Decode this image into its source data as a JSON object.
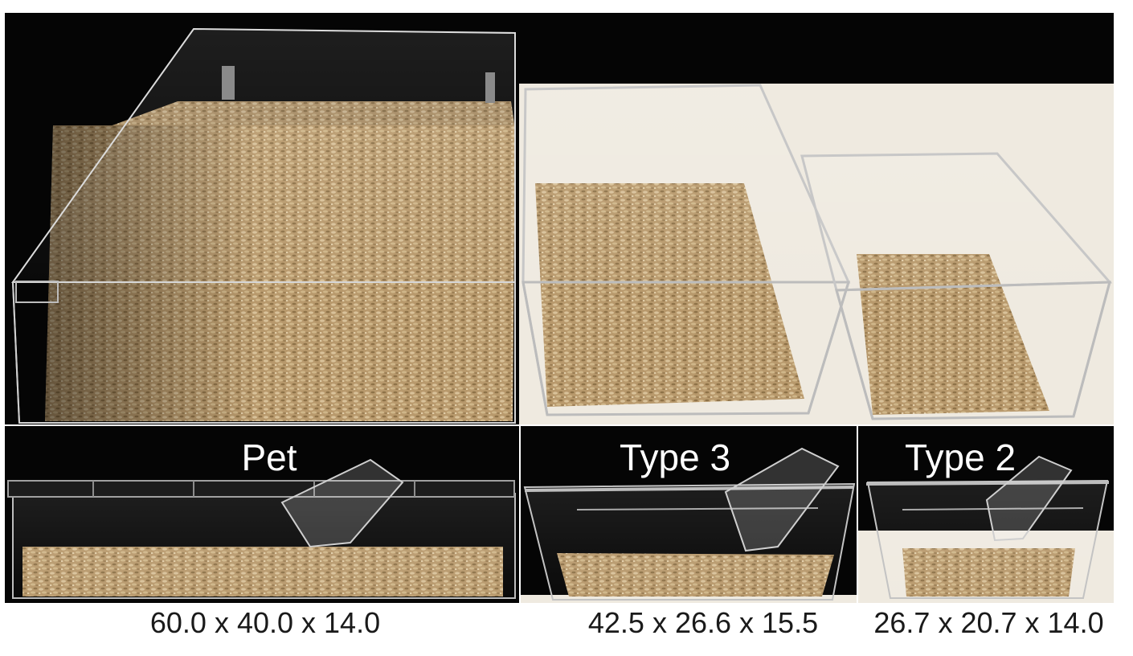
{
  "figure": {
    "photos": {
      "top_photo": "cage-photo",
      "front_photos": "cage-front-photo"
    },
    "cages": [
      {
        "label": "Pet",
        "dimensions": "60.0 x 40.0 x 14.0"
      },
      {
        "label": "Type 3",
        "dimensions": "42.5 x 26.6 x 15.5"
      },
      {
        "label": "Type 2",
        "dimensions": "26.7 x 20.7 x 14.0"
      }
    ]
  },
  "colors": {
    "background_dark": "#050505",
    "background_light": "#efeae0",
    "bedding": "#b99c72",
    "text_light": "#ffffff",
    "text_dark": "#1a1a1a"
  }
}
